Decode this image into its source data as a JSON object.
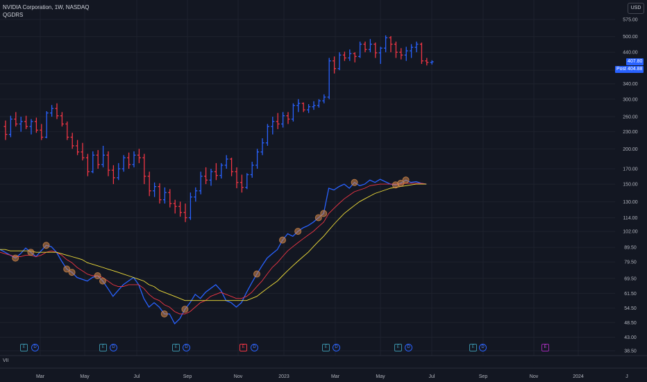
{
  "header": {
    "title": "NVIDIA Corporation, 1W, NASDAQ",
    "indicator": "QGDRS"
  },
  "toolbar": {
    "currency": "USD"
  },
  "price_tags": {
    "last": "407.80",
    "post_label": "Post",
    "post": "404.88"
  },
  "lower_pane": {
    "label": "VII"
  },
  "events": [
    {
      "type": "E",
      "style": "normal"
    },
    {
      "type": "D",
      "style": "normal"
    },
    {
      "type": "E",
      "style": "normal"
    },
    {
      "type": "D",
      "style": "normal"
    },
    {
      "type": "E",
      "style": "normal"
    },
    {
      "type": "D",
      "style": "normal"
    },
    {
      "type": "E",
      "style": "red"
    },
    {
      "type": "D",
      "style": "normal"
    },
    {
      "type": "E",
      "style": "normal"
    },
    {
      "type": "D",
      "style": "normal"
    },
    {
      "type": "E",
      "style": "normal"
    },
    {
      "type": "D",
      "style": "normal"
    },
    {
      "type": "E",
      "style": "normal"
    },
    {
      "type": "D",
      "style": "normal"
    },
    {
      "type": "E",
      "style": "purple"
    }
  ],
  "colors": {
    "background": "#131722",
    "up": "#2962ff",
    "down": "#f23645",
    "grid": "#1e222d",
    "osc": "#2962ff",
    "fast_ma": "#f23645",
    "slow_ma": "#f5e23a",
    "marker": "#d2874a"
  },
  "chart_data": {
    "type": "bar",
    "scale": "log",
    "y_ticks": [
      575.0,
      500.0,
      440.0,
      380.0,
      340.0,
      300.0,
      260.0,
      230.0,
      200.0,
      170.0,
      150.0,
      130.0,
      114.0,
      102.0,
      89.5,
      79.5,
      69.5,
      61.5,
      54.5,
      48.5,
      43.0,
      38.5
    ],
    "x_ticks": [
      "Mar",
      "May",
      "Jul",
      "Sep",
      "Nov",
      "2023",
      "Mar",
      "May",
      "Jul",
      "Sep",
      "Nov",
      "2024",
      "J"
    ],
    "ohlc": [
      [
        240,
        252,
        215,
        225
      ],
      [
        225,
        262,
        220,
        255
      ],
      [
        255,
        270,
        240,
        245
      ],
      [
        245,
        260,
        230,
        250
      ],
      [
        250,
        262,
        235,
        240
      ],
      [
        240,
        255,
        225,
        250
      ],
      [
        250,
        258,
        228,
        233
      ],
      [
        233,
        245,
        215,
        220
      ],
      [
        220,
        272,
        218,
        268
      ],
      [
        268,
        286,
        260,
        278
      ],
      [
        278,
        290,
        255,
        262
      ],
      [
        262,
        270,
        240,
        245
      ],
      [
        245,
        250,
        215,
        220
      ],
      [
        220,
        228,
        200,
        205
      ],
      [
        205,
        215,
        190,
        195
      ],
      [
        195,
        210,
        182,
        186
      ],
      [
        186,
        192,
        160,
        166
      ],
      [
        166,
        196,
        164,
        190
      ],
      [
        190,
        198,
        170,
        176
      ],
      [
        176,
        205,
        172,
        190
      ],
      [
        190,
        196,
        160,
        168
      ],
      [
        168,
        175,
        150,
        158
      ],
      [
        158,
        178,
        155,
        170
      ],
      [
        170,
        190,
        166,
        186
      ],
      [
        186,
        194,
        170,
        176
      ],
      [
        176,
        196,
        172,
        190
      ],
      [
        190,
        200,
        178,
        186
      ],
      [
        186,
        192,
        150,
        160
      ],
      [
        160,
        166,
        136,
        142
      ],
      [
        142,
        152,
        135,
        147
      ],
      [
        147,
        151,
        128,
        132
      ],
      [
        132,
        146,
        128,
        140
      ],
      [
        140,
        144,
        124,
        128
      ],
      [
        128,
        132,
        118,
        125
      ],
      [
        125,
        130,
        115,
        119
      ],
      [
        119,
        128,
        110,
        114
      ],
      [
        114,
        140,
        112,
        135
      ],
      [
        135,
        146,
        130,
        142
      ],
      [
        142,
        166,
        138,
        160
      ],
      [
        160,
        172,
        150,
        155
      ],
      [
        155,
        170,
        148,
        166
      ],
      [
        166,
        178,
        155,
        161
      ],
      [
        161,
        178,
        157,
        175
      ],
      [
        175,
        190,
        170,
        184
      ],
      [
        184,
        186,
        160,
        166
      ],
      [
        166,
        172,
        145,
        152
      ],
      [
        152,
        162,
        140,
        146
      ],
      [
        146,
        164,
        144,
        162
      ],
      [
        162,
        180,
        158,
        175
      ],
      [
        175,
        200,
        170,
        195
      ],
      [
        195,
        218,
        190,
        210
      ],
      [
        210,
        245,
        205,
        240
      ],
      [
        240,
        260,
        225,
        250
      ],
      [
        250,
        268,
        235,
        245
      ],
      [
        245,
        270,
        238,
        262
      ],
      [
        262,
        270,
        245,
        255
      ],
      [
        255,
        290,
        250,
        285
      ],
      [
        285,
        300,
        270,
        290
      ],
      [
        290,
        292,
        270,
        275
      ],
      [
        275,
        288,
        268,
        282
      ],
      [
        282,
        295,
        275,
        285
      ],
      [
        285,
        300,
        280,
        296
      ],
      [
        296,
        312,
        290,
        305
      ],
      [
        305,
        420,
        300,
        410
      ],
      [
        410,
        425,
        370,
        385
      ],
      [
        385,
        440,
        380,
        430
      ],
      [
        430,
        442,
        410,
        420
      ],
      [
        420,
        450,
        410,
        435
      ],
      [
        435,
        440,
        405,
        425
      ],
      [
        425,
        480,
        420,
        470
      ],
      [
        470,
        480,
        440,
        450
      ],
      [
        450,
        490,
        440,
        470
      ],
      [
        470,
        476,
        420,
        438
      ],
      [
        438,
        460,
        400,
        455
      ],
      [
        455,
        505,
        440,
        495
      ],
      [
        495,
        502,
        440,
        470
      ],
      [
        470,
        480,
        420,
        440
      ],
      [
        440,
        455,
        415,
        430
      ],
      [
        430,
        460,
        410,
        445
      ],
      [
        445,
        470,
        420,
        458
      ],
      [
        458,
        480,
        440,
        470
      ],
      [
        470,
        476,
        400,
        410
      ],
      [
        410,
        420,
        395,
        405
      ],
      [
        405,
        412,
        398,
        407
      ]
    ],
    "series": [
      {
        "name": "",
        "values": [
          88,
          86,
          84,
          82,
          85,
          89,
          86,
          83,
          87,
          91,
          90,
          86,
          80,
          75,
          73,
          70,
          69,
          68,
          70,
          71,
          68,
          64,
          60,
          63,
          66,
          68,
          70,
          66,
          59,
          55,
          57,
          55,
          52,
          52,
          48,
          50,
          54,
          57,
          61,
          59,
          62,
          64,
          66,
          63,
          58,
          57,
          55,
          57,
          62,
          67,
          72,
          77,
          82,
          85,
          88,
          95,
          100,
          98,
          102,
          105,
          107,
          110,
          114,
          118,
          145,
          143,
          147,
          150,
          145,
          152,
          148,
          150,
          155,
          152,
          156,
          153,
          150,
          149,
          151,
          155,
          152,
          153,
          151,
          150
        ]
      },
      {
        "name": "",
        "values": [
          86,
          85,
          84,
          83,
          83,
          84,
          84,
          83,
          84,
          86,
          87,
          86,
          84,
          81,
          79,
          76,
          74,
          72,
          71,
          71,
          70,
          68,
          66,
          65,
          65,
          66,
          66,
          66,
          64,
          61,
          59,
          58,
          56,
          55,
          53,
          52,
          52,
          53,
          55,
          57,
          58,
          60,
          61,
          62,
          61,
          60,
          59,
          59,
          60,
          62,
          65,
          68,
          72,
          76,
          79,
          83,
          87,
          90,
          93,
          96,
          99,
          102,
          106,
          110,
          118,
          123,
          128,
          133,
          137,
          141,
          143,
          145,
          148,
          149,
          150,
          150,
          150,
          150,
          150,
          151,
          151,
          151,
          151,
          150
        ]
      },
      {
        "name": "",
        "values": [
          88,
          88,
          87,
          87,
          87,
          87,
          87,
          86,
          86,
          86,
          86,
          86,
          85,
          84,
          83,
          82,
          81,
          79,
          78,
          77,
          76,
          75,
          74,
          73,
          72,
          71,
          70,
          69,
          68,
          66,
          65,
          63,
          62,
          61,
          60,
          59,
          58,
          58,
          58,
          58,
          58,
          58,
          58,
          58,
          58,
          58,
          58,
          58,
          58,
          59,
          60,
          62,
          64,
          66,
          68,
          71,
          74,
          77,
          80,
          83,
          86,
          90,
          94,
          98,
          103,
          108,
          113,
          118,
          122,
          126,
          130,
          133,
          136,
          139,
          141,
          143,
          145,
          146,
          147,
          148,
          149,
          150,
          150,
          150
        ]
      }
    ],
    "crossings": [
      3,
      6,
      9,
      13,
      14,
      19,
      20,
      32,
      36,
      50,
      55,
      58,
      62,
      63,
      69,
      77,
      78,
      79
    ]
  }
}
